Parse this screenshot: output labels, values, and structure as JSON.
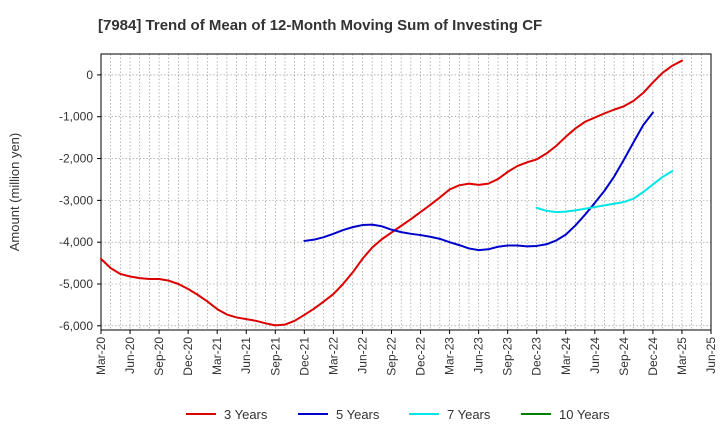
{
  "chart_data": {
    "type": "line",
    "title": "[7984]  Trend of Mean of 12-Month Moving Sum of Investing CF",
    "xlabel": "",
    "ylabel": "Amount (million yen)",
    "ylim": [
      -6100,
      500
    ],
    "yticks": [
      0,
      -1000,
      -2000,
      -3000,
      -4000,
      -5000,
      -6000
    ],
    "ytick_labels": [
      "0",
      "-1,000",
      "-2,000",
      "-3,000",
      "-4,000",
      "-5,000",
      "-6,000"
    ],
    "xtick_labels": [
      "Mar-20",
      "Jun-20",
      "Sep-20",
      "Dec-20",
      "Mar-21",
      "Jun-21",
      "Sep-21",
      "Dec-21",
      "Mar-22",
      "Jun-22",
      "Sep-22",
      "Dec-22",
      "Mar-23",
      "Jun-23",
      "Sep-23",
      "Dec-23",
      "Mar-24",
      "Jun-24",
      "Sep-24",
      "Dec-24",
      "Mar-25",
      "Jun-25"
    ],
    "n_months": 63,
    "grid": true,
    "legend_position": "bottom",
    "series": [
      {
        "name": "3 Years",
        "color": "#dd0000",
        "start_month": 0,
        "values": [
          -4400,
          -4620,
          -4760,
          -4820,
          -4860,
          -4880,
          -4880,
          -4920,
          -5000,
          -5120,
          -5260,
          -5420,
          -5600,
          -5730,
          -5800,
          -5840,
          -5880,
          -5940,
          -5990,
          -5970,
          -5880,
          -5740,
          -5590,
          -5420,
          -5240,
          -5000,
          -4720,
          -4400,
          -4130,
          -3930,
          -3770,
          -3610,
          -3450,
          -3280,
          -3110,
          -2930,
          -2740,
          -2640,
          -2600,
          -2630,
          -2600,
          -2490,
          -2320,
          -2180,
          -2090,
          -2020,
          -1880,
          -1700,
          -1480,
          -1280,
          -1120,
          -1020,
          -920,
          -830,
          -750,
          -620,
          -430,
          -180,
          50,
          220,
          340
        ]
      },
      {
        "name": "5 Years",
        "color": "#0000cc",
        "start_month": 21,
        "values": [
          -3970,
          -3940,
          -3880,
          -3800,
          -3710,
          -3640,
          -3590,
          -3580,
          -3620,
          -3700,
          -3760,
          -3800,
          -3830,
          -3870,
          -3920,
          -4000,
          -4070,
          -4150,
          -4190,
          -4170,
          -4110,
          -4080,
          -4080,
          -4100,
          -4090,
          -4050,
          -3960,
          -3820,
          -3600,
          -3340,
          -3060,
          -2770,
          -2430,
          -2030,
          -1610,
          -1200,
          -900
        ]
      },
      {
        "name": "7 Years",
        "color": "#00e5e5",
        "start_month": 45,
        "values": [
          -3180,
          -3250,
          -3280,
          -3270,
          -3240,
          -3200,
          -3160,
          -3120,
          -3080,
          -3040,
          -2960,
          -2800,
          -2620,
          -2440,
          -2300
        ]
      },
      {
        "name": "10 Years",
        "color": "#008000",
        "start_month": 0,
        "values": []
      }
    ]
  }
}
